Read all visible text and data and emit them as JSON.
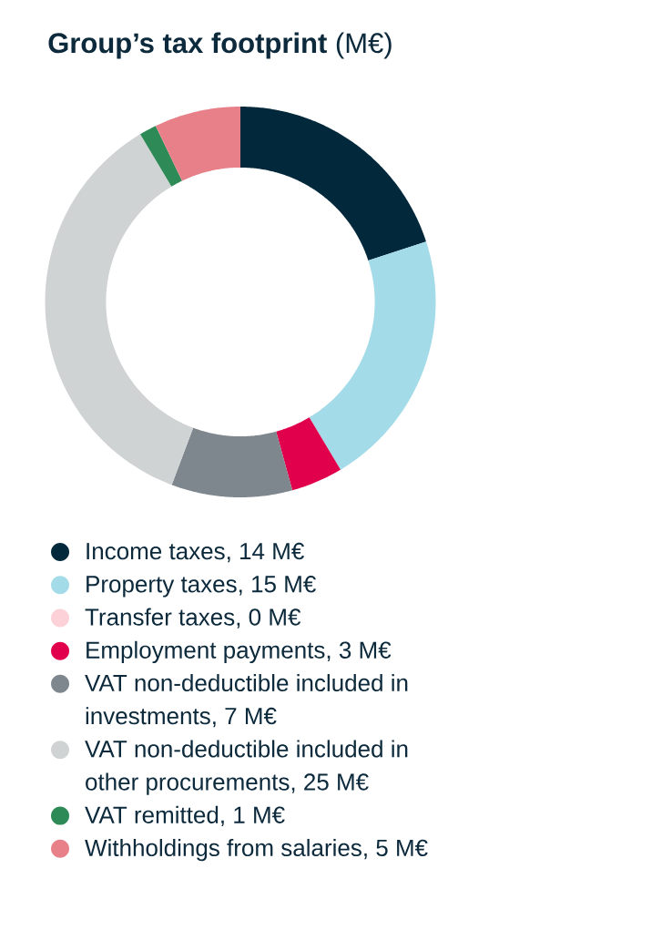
{
  "chart_data": {
    "type": "donut",
    "title": "**Group’s tax footprint** (M€)",
    "categories": [
      "Income taxes, 14 M€",
      "Property taxes, 15 M€",
      "Transfer taxes, 0 M€",
      "Employment payments, 3 M€",
      "VAT non-deductible included in investments, 7 M€",
      "VAT non-deductible included in other procurements, 25 M€",
      "VAT remitted, 1 M€",
      "Withholdings from salaries, 5 M€"
    ],
    "values": [
      14,
      15,
      0,
      3,
      7,
      25,
      1,
      5
    ],
    "colors": [
      "#02283b",
      "#a4dbe8",
      "#fcd2d8",
      "#e1004b",
      "#7f878e",
      "#d0d3d4",
      "#2e8b57",
      "#e8808a"
    ],
    "legend": "bottom"
  }
}
